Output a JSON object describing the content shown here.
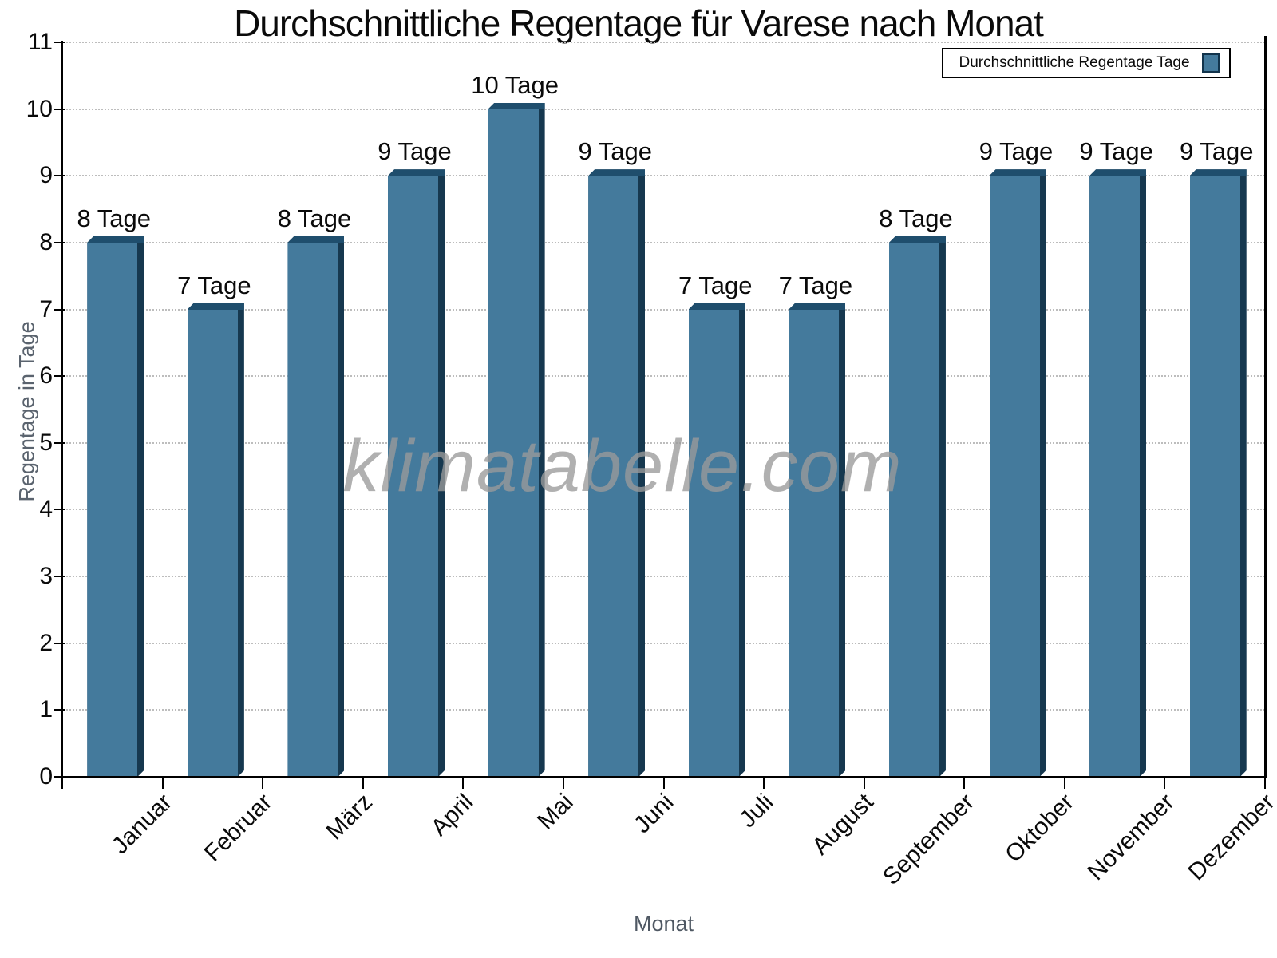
{
  "title": "Durchschnittliche Regentage für Varese nach Monat",
  "watermark": "klimatabelle.com",
  "legend": {
    "label": "Durchschnittliche Regentage Tage",
    "swatch_color": "#447a9c"
  },
  "chart_data": {
    "type": "bar",
    "title": "Durchschnittliche Regentage für Varese nach Monat",
    "xlabel": "Monat",
    "ylabel": "Regentage in Tage",
    "categories": [
      "Januar",
      "Februar",
      "März",
      "April",
      "Mai",
      "Juni",
      "Juli",
      "August",
      "September",
      "Oktober",
      "November",
      "Dezember"
    ],
    "values": [
      8,
      7,
      8,
      9,
      10,
      9,
      7,
      7,
      8,
      9,
      9,
      9
    ],
    "data_labels": [
      "8 Tage",
      "7 Tage",
      "8 Tage",
      "9 Tage",
      "10 Tage",
      "9 Tage",
      "7 Tage",
      "7 Tage",
      "8 Tage",
      "9 Tage",
      "9 Tage",
      "9 Tage"
    ],
    "series": [
      {
        "name": "Durchschnittliche Regentage Tage",
        "values": [
          8,
          7,
          8,
          9,
          10,
          9,
          7,
          7,
          8,
          9,
          9,
          9
        ]
      }
    ],
    "ylim": [
      0,
      11
    ],
    "y_ticks": [
      0,
      1,
      2,
      3,
      4,
      5,
      6,
      7,
      8,
      9,
      10,
      11
    ],
    "grid": "horizontal-dotted",
    "legend_position": "top-right",
    "x_tick_label_rotation_deg": -45,
    "colors": {
      "bar_face": "#447a9c",
      "bar_side": "#16384f",
      "bar_top": "#1f4e6d",
      "grid": "#bdbdbd",
      "axis": "#000000",
      "axis_titles": "#5a636e",
      "watermark": "#9b9b9b"
    }
  }
}
